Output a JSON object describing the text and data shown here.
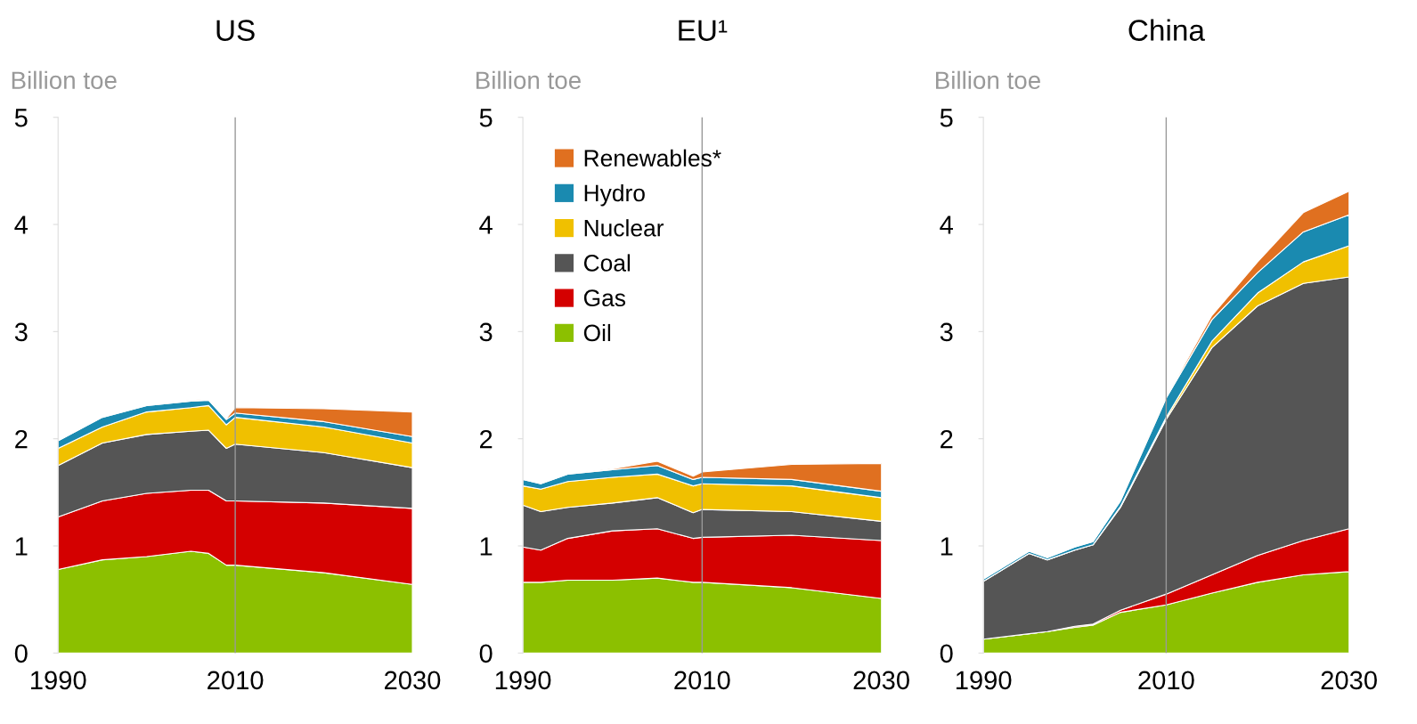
{
  "chart_data": [
    {
      "type": "area",
      "stacked": true,
      "title": "US",
      "ylabel": "Billion toe",
      "x": [
        1990,
        1995,
        2000,
        2005,
        2007,
        2009,
        2010,
        2020,
        2030
      ],
      "xlim": [
        1990,
        2030
      ],
      "xticks": [
        1990,
        2010,
        2030
      ],
      "ylim": [
        0,
        5
      ],
      "yticks": [
        0,
        1,
        2,
        3,
        4,
        5
      ],
      "grid": false,
      "legend": false,
      "ref_lines": [
        {
          "axis": "x",
          "value": 2010,
          "color": "#999999"
        }
      ],
      "series": [
        {
          "color": "#8cc000",
          "values": [
            0.78,
            0.87,
            0.9,
            0.95,
            0.93,
            0.82,
            0.82,
            0.75,
            0.64
          ]
        },
        {
          "color": "#d40000",
          "values": [
            0.49,
            0.55,
            0.59,
            0.57,
            0.59,
            0.6,
            0.6,
            0.65,
            0.71
          ]
        },
        {
          "color": "#555555",
          "values": [
            0.48,
            0.54,
            0.55,
            0.55,
            0.56,
            0.49,
            0.53,
            0.47,
            0.38
          ]
        },
        {
          "color": "#f0c000",
          "values": [
            0.16,
            0.15,
            0.21,
            0.22,
            0.23,
            0.22,
            0.25,
            0.24,
            0.23
          ]
        },
        {
          "color": "#1a8ab0",
          "values": [
            0.07,
            0.09,
            0.06,
            0.06,
            0.05,
            0.05,
            0.04,
            0.05,
            0.06
          ]
        },
        {
          "color": "#e07020",
          "values": [
            0,
            0,
            0,
            0.01,
            0.01,
            0.01,
            0.05,
            0.12,
            0.23
          ]
        }
      ]
    },
    {
      "type": "area",
      "stacked": true,
      "title": "EU¹",
      "ylabel": "Billion toe",
      "x": [
        1990,
        1992,
        1995,
        2000,
        2005,
        2009,
        2010,
        2020,
        2030
      ],
      "xlim": [
        1990,
        2030
      ],
      "xticks": [
        1990,
        2010,
        2030
      ],
      "ylim": [
        0,
        5
      ],
      "yticks": [
        0,
        1,
        2,
        3,
        4,
        5
      ],
      "grid": false,
      "legend": "top left",
      "ref_lines": [
        {
          "axis": "x",
          "value": 2010,
          "color": "#999999"
        }
      ],
      "series": [
        {
          "name": "Oil",
          "color": "#8cc000",
          "values": [
            0.66,
            0.66,
            0.68,
            0.68,
            0.7,
            0.66,
            0.66,
            0.61,
            0.51
          ]
        },
        {
          "name": "Gas",
          "color": "#d40000",
          "values": [
            0.33,
            0.3,
            0.39,
            0.46,
            0.46,
            0.41,
            0.42,
            0.49,
            0.54
          ]
        },
        {
          "name": "Coal",
          "color": "#555555",
          "values": [
            0.39,
            0.36,
            0.29,
            0.26,
            0.29,
            0.24,
            0.26,
            0.22,
            0.18
          ]
        },
        {
          "name": "Nuclear",
          "color": "#f0c000",
          "values": [
            0.18,
            0.21,
            0.24,
            0.24,
            0.22,
            0.25,
            0.24,
            0.24,
            0.22
          ]
        },
        {
          "name": "Hydro",
          "color": "#1a8ab0",
          "values": [
            0.06,
            0.05,
            0.07,
            0.07,
            0.08,
            0.06,
            0.06,
            0.06,
            0.06
          ]
        },
        {
          "name": "Renewables*",
          "color": "#e07020",
          "values": [
            0,
            0,
            0,
            0.01,
            0.04,
            0.03,
            0.05,
            0.14,
            0.26
          ]
        }
      ]
    },
    {
      "type": "area",
      "stacked": true,
      "title": "China",
      "ylabel": "Billion toe",
      "x": [
        1990,
        1995,
        1997,
        2000,
        2002,
        2005,
        2010,
        2015,
        2020,
        2025,
        2030
      ],
      "xlim": [
        1990,
        2030
      ],
      "xticks": [
        1990,
        2010,
        2030
      ],
      "ylim": [
        0,
        5
      ],
      "yticks": [
        0,
        1,
        2,
        3,
        4,
        5
      ],
      "grid": false,
      "legend": false,
      "ref_lines": [
        {
          "axis": "x",
          "value": 2010,
          "color": "#999999"
        }
      ],
      "series": [
        {
          "color": "#8cc000",
          "values": [
            0.13,
            0.18,
            0.2,
            0.24,
            0.26,
            0.38,
            0.45,
            0.56,
            0.66,
            0.73,
            0.76
          ]
        },
        {
          "color": "#d40000",
          "values": [
            0,
            0,
            0,
            0.01,
            0.01,
            0.02,
            0.1,
            0.17,
            0.25,
            0.32,
            0.4
          ]
        },
        {
          "color": "#555555",
          "values": [
            0.54,
            0.75,
            0.67,
            0.71,
            0.74,
            0.96,
            1.63,
            2.12,
            2.33,
            2.4,
            2.35
          ]
        },
        {
          "color": "#f0c000",
          "values": [
            0,
            0,
            0,
            0,
            0,
            0.01,
            0.02,
            0.06,
            0.12,
            0.2,
            0.29
          ]
        },
        {
          "color": "#1a8ab0",
          "values": [
            0.02,
            0.02,
            0.02,
            0.03,
            0.03,
            0.05,
            0.18,
            0.2,
            0.19,
            0.28,
            0.29
          ]
        },
        {
          "color": "#e07020",
          "values": [
            0,
            0,
            0,
            0,
            0,
            0,
            0.01,
            0.04,
            0.1,
            0.18,
            0.22
          ]
        }
      ]
    }
  ]
}
